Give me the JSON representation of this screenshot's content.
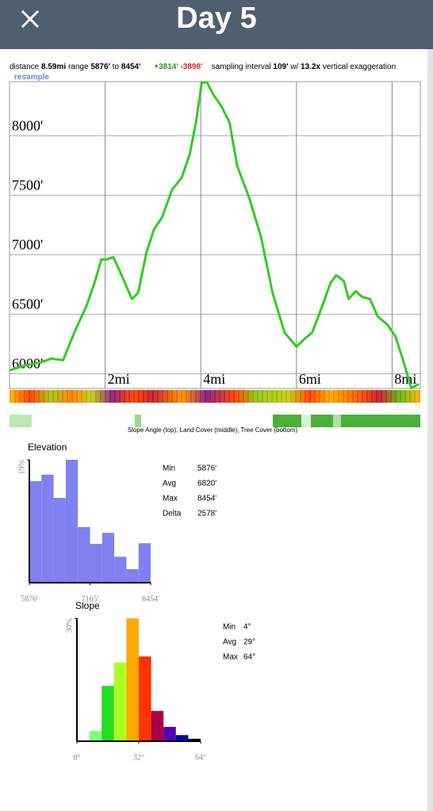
{
  "header": {
    "title": "Day 5"
  },
  "summary": {
    "distance_label": "distance",
    "distance": "8.59mi",
    "range_label": "range",
    "range_min": "5876'",
    "to": "to",
    "range_max": "8454'",
    "gain": "+3814'",
    "loss": "-3898'",
    "interval_label": "sampling interval",
    "interval": "109'",
    "w": "w/",
    "exaggeration": "13.2x",
    "exaggeration_label": "vertical exaggeration",
    "resample": "resample"
  },
  "bands_caption": "Slope Angle (top), Land Cover (middle), Tree Cover (bottom)",
  "chart_data": [
    {
      "type": "line",
      "color": "#33cc22",
      "x": [
        0,
        0.3,
        0.63,
        0.88,
        1.12,
        1.37,
        1.62,
        1.79,
        1.92,
        2.03,
        2.17,
        2.36,
        2.56,
        2.69,
        2.86,
        3.02,
        3.19,
        3.4,
        3.6,
        3.77,
        3.9,
        4.02,
        4.13,
        4.26,
        4.43,
        4.6,
        4.76,
        5.01,
        5.26,
        5.5,
        5.75,
        6.0,
        6.17,
        6.33,
        6.55,
        6.71,
        6.83,
        6.99,
        7.09,
        7.24,
        7.37,
        7.54,
        7.7,
        7.9,
        8.07,
        8.23,
        8.4,
        8.56
      ],
      "values": [
        6027,
        6067,
        6093,
        6127,
        6113,
        6360,
        6580,
        6780,
        6960,
        6960,
        6980,
        6813,
        6627,
        6680,
        7013,
        7213,
        7313,
        7547,
        7647,
        7847,
        8113,
        8447,
        8447,
        8347,
        8247,
        8113,
        7747,
        7480,
        7147,
        6680,
        6347,
        6227,
        6293,
        6347,
        6580,
        6760,
        6827,
        6780,
        6627,
        6693,
        6647,
        6627,
        6480,
        6413,
        6313,
        6113,
        5880,
        5913
      ],
      "xlim": [
        0,
        8.59
      ],
      "ylim": [
        5876,
        8454
      ],
      "xticks": [
        {
          "value": 2,
          "label": "2mi"
        },
        {
          "value": 4,
          "label": "4mi"
        },
        {
          "value": 6,
          "label": "6mi"
        },
        {
          "value": 8,
          "label": "8mi"
        }
      ],
      "yticks": [
        {
          "value": 6000,
          "label": "6000'"
        },
        {
          "value": 6500,
          "label": "6500'"
        },
        {
          "value": 7000,
          "label": "7000'"
        },
        {
          "value": 7500,
          "label": "7500'"
        },
        {
          "value": 8000,
          "label": "8000'"
        }
      ],
      "grid": true
    },
    {
      "type": "histogram",
      "title": "Elevation",
      "color": "#8080f0",
      "bins": [
        5876,
        6133.8,
        6391.6,
        6649.4,
        6907.2,
        7165,
        7422.8,
        7680.6,
        7938.4,
        8196.2,
        8454
      ],
      "values": [
        15.7,
        16.7,
        13.1,
        19,
        8.6,
        6.0,
        7.7,
        4.0,
        2.1,
        6.1
      ],
      "xlim": [
        5876,
        8454
      ],
      "ylim": [
        0,
        19
      ],
      "xticks": [
        {
          "value": 5876,
          "label": "5876'"
        },
        {
          "value": 7165,
          "label": "7165'"
        },
        {
          "value": 8454,
          "label": "8454'"
        }
      ],
      "yticks": [
        {
          "value": 19,
          "label": "19%"
        }
      ],
      "stats": [
        [
          "Min",
          "5876'"
        ],
        [
          "Avg",
          "6820'"
        ],
        [
          "Max",
          "8454'"
        ],
        [
          "Delta",
          "2578'"
        ]
      ]
    },
    {
      "type": "histogram",
      "title": "Slope",
      "colors": [
        "#c8ffc8",
        "#80ff80",
        "#22dd22",
        "#aaff22",
        "#ffaa00",
        "#ff3300",
        "#aa0044",
        "#5500bb",
        "#0000aa",
        "#000000"
      ],
      "bins": [
        0,
        6.4,
        12.8,
        19.2,
        25.6,
        32,
        38.4,
        44.8,
        51.2,
        57.6,
        64
      ],
      "values": [
        0.2,
        2.5,
        13.5,
        19.2,
        30,
        20.7,
        7.4,
        3.5,
        1.5,
        0.6
      ],
      "xlim": [
        0,
        64
      ],
      "ylim": [
        0,
        30
      ],
      "xticks": [
        {
          "value": 0,
          "label": "0°"
        },
        {
          "value": 32,
          "label": "32°"
        },
        {
          "value": 64,
          "label": "64°"
        }
      ],
      "yticks": [
        {
          "value": 30,
          "label": "30%"
        }
      ],
      "stats": [
        [
          "Min",
          "4°"
        ],
        [
          "Avg",
          "29°"
        ],
        [
          "Max",
          "64°"
        ]
      ]
    }
  ]
}
